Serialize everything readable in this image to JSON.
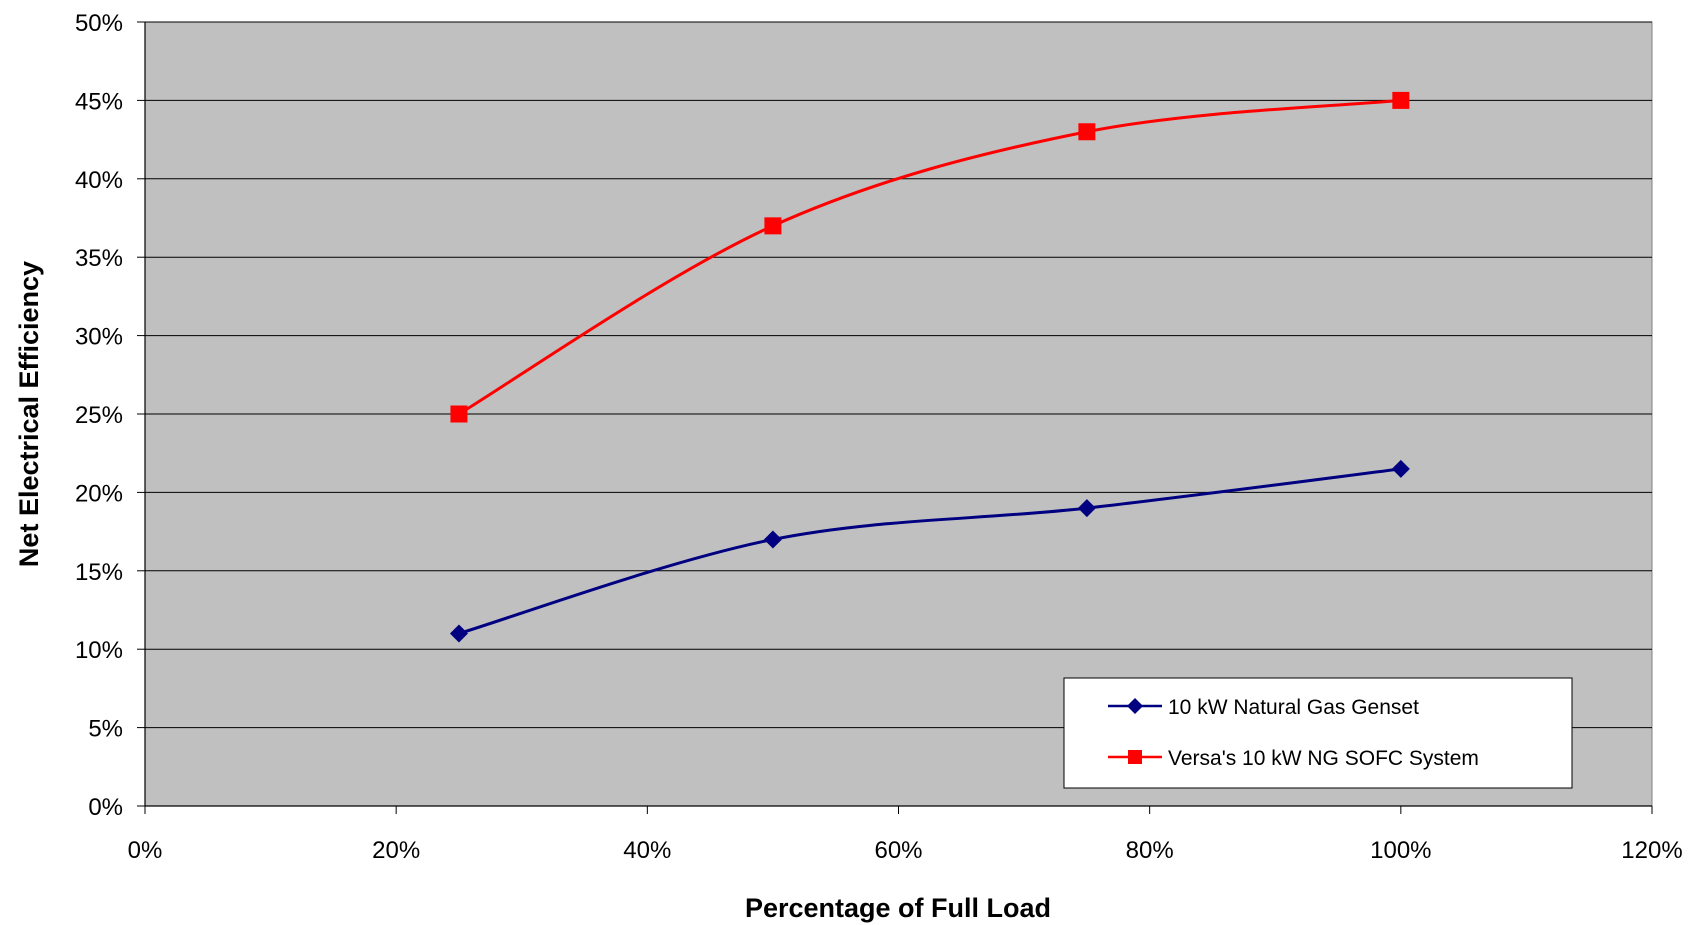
{
  "chart_data": {
    "type": "line",
    "title": "",
    "xlabel": "Percentage of Full Load",
    "ylabel": "Net Electrical Efficiency",
    "xlim": [
      0,
      120
    ],
    "ylim": [
      0,
      50
    ],
    "x_ticks": [
      "0%",
      "20%",
      "40%",
      "60%",
      "80%",
      "100%",
      "120%"
    ],
    "y_ticks": [
      "0%",
      "5%",
      "10%",
      "15%",
      "20%",
      "25%",
      "30%",
      "35%",
      "40%",
      "45%",
      "50%"
    ],
    "grid": "horizontal",
    "legend_position": "bottom-right",
    "plot_background": "#c0c0c0",
    "series": [
      {
        "name": "10 kW Natural Gas Genset",
        "color": "#000080",
        "marker": "diamond",
        "points": [
          {
            "x": 25,
            "y": 11
          },
          {
            "x": 50,
            "y": 17
          },
          {
            "x": 75,
            "y": 19
          },
          {
            "x": 100,
            "y": 21.5
          }
        ]
      },
      {
        "name": "Versa's 10 kW NG SOFC System",
        "color": "#ff0000",
        "marker": "square",
        "points": [
          {
            "x": 25,
            "y": 25
          },
          {
            "x": 50,
            "y": 37
          },
          {
            "x": 75,
            "y": 43
          },
          {
            "x": 100,
            "y": 45
          }
        ]
      }
    ]
  }
}
